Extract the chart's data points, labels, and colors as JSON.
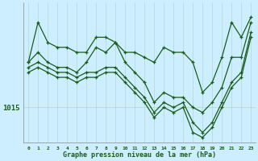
{
  "xlabel": "Graphe pression niveau de la mer (hPa)",
  "bg_color": "#cceeff",
  "line_color": "#1a5c1a",
  "grid_color_v": "#b0d8d8",
  "grid_color_h": "#b8d8b8",
  "y1015_label": "1015",
  "xlim": [
    -0.5,
    23.5
  ],
  "ylim": [
    1011.5,
    1025.5
  ],
  "ytick_1015": 1015,
  "series1_x": [
    0,
    1,
    2,
    3,
    4,
    5,
    6,
    7,
    8,
    9,
    10,
    11,
    12,
    13,
    14,
    15,
    16,
    17,
    18,
    19,
    20,
    21,
    22,
    23
  ],
  "series1_y": [
    1019.5,
    1023.5,
    1021.5,
    1021.0,
    1021.0,
    1020.5,
    1020.5,
    1022.0,
    1022.0,
    1021.5,
    1020.5,
    1020.5,
    1020.0,
    1019.5,
    1021.0,
    1020.5,
    1020.5,
    1019.5,
    1016.5,
    1017.5,
    1020.0,
    1023.5,
    1022.0,
    1024.0
  ],
  "series2_x": [
    0,
    1,
    2,
    3,
    4,
    5,
    6,
    7,
    8,
    9,
    10,
    11,
    12,
    13,
    14,
    15,
    16,
    17,
    18,
    19,
    20,
    21,
    22,
    23
  ],
  "series2_y": [
    1019.5,
    1020.5,
    1019.5,
    1019.0,
    1019.0,
    1018.5,
    1019.5,
    1021.0,
    1020.5,
    1021.5,
    1019.5,
    1018.5,
    1017.5,
    1015.5,
    1016.5,
    1016.0,
    1016.0,
    1015.0,
    1014.5,
    1015.5,
    1017.0,
    1020.0,
    1020.0,
    1023.5
  ],
  "series3_x": [
    0,
    1,
    2,
    3,
    4,
    5,
    6,
    7,
    8,
    9,
    10,
    11,
    12,
    13,
    14,
    15,
    16,
    17,
    18,
    19,
    20,
    21,
    22,
    23
  ],
  "series3_y": [
    1019.0,
    1019.5,
    1019.0,
    1018.5,
    1018.5,
    1018.0,
    1018.5,
    1018.5,
    1019.0,
    1019.0,
    1018.0,
    1017.0,
    1016.0,
    1014.5,
    1015.5,
    1015.0,
    1015.5,
    1013.5,
    1012.5,
    1013.5,
    1015.5,
    1017.5,
    1018.5,
    1022.5
  ],
  "series4_x": [
    0,
    1,
    2,
    3,
    4,
    5,
    6,
    7,
    8,
    9,
    10,
    11,
    12,
    13,
    14,
    15,
    16,
    17,
    18,
    19,
    20,
    21,
    22,
    23
  ],
  "series4_y": [
    1018.5,
    1019.0,
    1018.5,
    1018.0,
    1018.0,
    1017.5,
    1018.0,
    1018.0,
    1018.5,
    1018.5,
    1017.5,
    1016.5,
    1015.5,
    1014.0,
    1015.0,
    1014.5,
    1015.0,
    1012.5,
    1012.0,
    1013.0,
    1015.0,
    1017.0,
    1018.0,
    1022.0
  ]
}
